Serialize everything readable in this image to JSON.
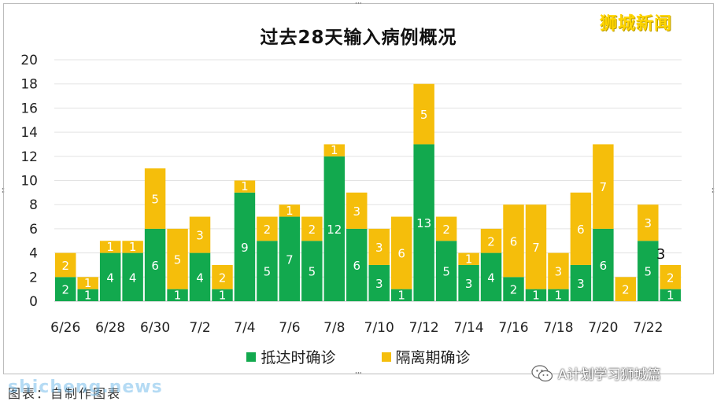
{
  "brand": "狮城新闻",
  "watermark": "shicheng.news",
  "caption_left": "图表：自制作图表",
  "wechat_label": "A计划学习狮城篇",
  "colors": {
    "arrival": "#12a94e",
    "quarantine": "#f5be0b",
    "total_label": "#111111"
  },
  "chart_data": {
    "type": "bar",
    "stacked": true,
    "title": "过去28天输入病例概况",
    "xlabel": "",
    "ylabel": "",
    "ylim": [
      0,
      20
    ],
    "yticks": [
      0,
      2,
      4,
      6,
      8,
      10,
      12,
      14,
      16,
      18,
      20
    ],
    "grid": true,
    "legend_position": "bottom",
    "categories": [
      "6/26",
      "6/27",
      "6/28",
      "6/29",
      "6/30",
      "7/1",
      "7/2",
      "7/3",
      "7/4",
      "7/5",
      "7/6",
      "7/7",
      "7/8",
      "7/9",
      "7/10",
      "7/11",
      "7/12",
      "7/13",
      "7/14",
      "7/15",
      "7/16",
      "7/17",
      "7/18",
      "7/19",
      "7/20",
      "7/21",
      "7/22",
      "7/23"
    ],
    "xtick_labels": [
      "6/26",
      "6/28",
      "6/30",
      "7/2",
      "7/4",
      "7/6",
      "7/8",
      "7/10",
      "7/12",
      "7/14",
      "7/16",
      "7/18",
      "7/20",
      "7/22"
    ],
    "series": [
      {
        "name": "抵达时确诊",
        "color": "#12a94e",
        "values": [
          2,
          1,
          4,
          4,
          6,
          1,
          4,
          1,
          9,
          5,
          7,
          5,
          12,
          6,
          3,
          1,
          13,
          5,
          3,
          4,
          2,
          1,
          1,
          3,
          6,
          0,
          5,
          1
        ]
      },
      {
        "name": "隔离期确诊",
        "color": "#f5be0b",
        "values": [
          2,
          1,
          1,
          1,
          5,
          5,
          3,
          2,
          1,
          2,
          1,
          2,
          1,
          3,
          3,
          6,
          5,
          2,
          1,
          2,
          6,
          7,
          3,
          6,
          7,
          2,
          3,
          2
        ]
      }
    ],
    "annotations": [
      {
        "category": "7/23",
        "text": "3"
      }
    ]
  }
}
